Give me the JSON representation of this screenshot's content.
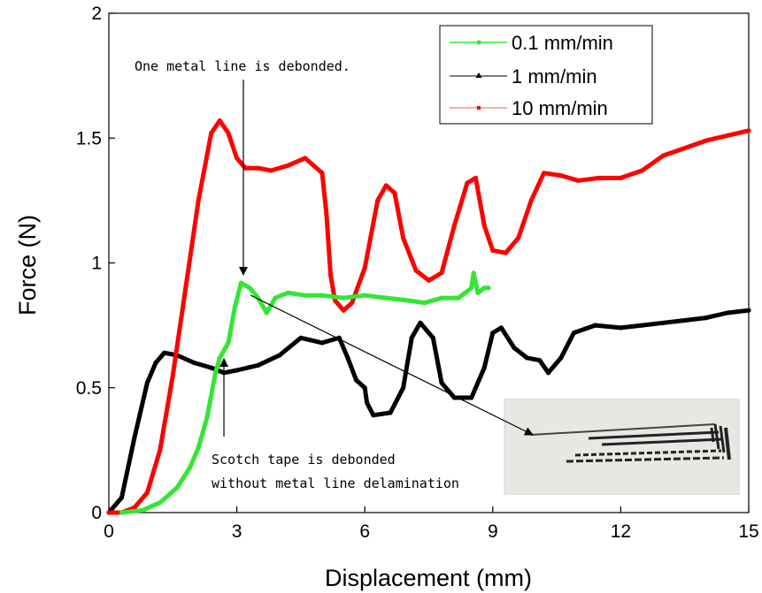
{
  "chart_data": {
    "type": "line",
    "xlabel": "Displacement (mm)",
    "ylabel": "Force (N)",
    "xlim": [
      0,
      15
    ],
    "ylim": [
      0,
      2
    ],
    "xticks": [
      "0",
      "3",
      "6",
      "9",
      "12",
      "15"
    ],
    "yticks": [
      "0",
      "0.5",
      "1",
      "1.5",
      "2"
    ],
    "legend_position": "top-right",
    "series": [
      {
        "name": "0.1 mm/min",
        "color": "#33e633",
        "marker": "circle",
        "points": [
          [
            0.3,
            0
          ],
          [
            0.8,
            0.01
          ],
          [
            1.2,
            0.04
          ],
          [
            1.6,
            0.1
          ],
          [
            1.9,
            0.18
          ],
          [
            2.1,
            0.26
          ],
          [
            2.3,
            0.38
          ],
          [
            2.5,
            0.56
          ],
          [
            2.6,
            0.62
          ],
          [
            2.8,
            0.68
          ],
          [
            2.95,
            0.82
          ],
          [
            3.1,
            0.92
          ],
          [
            3.3,
            0.9
          ],
          [
            3.5,
            0.86
          ],
          [
            3.7,
            0.8
          ],
          [
            3.9,
            0.86
          ],
          [
            4.2,
            0.88
          ],
          [
            4.6,
            0.87
          ],
          [
            5.0,
            0.87
          ],
          [
            5.5,
            0.86
          ],
          [
            6.0,
            0.87
          ],
          [
            6.5,
            0.86
          ],
          [
            7.0,
            0.85
          ],
          [
            7.4,
            0.84
          ],
          [
            7.8,
            0.86
          ],
          [
            8.2,
            0.86
          ],
          [
            8.5,
            0.9
          ],
          [
            8.55,
            0.96
          ],
          [
            8.65,
            0.88
          ],
          [
            8.8,
            0.9
          ],
          [
            8.9,
            0.9
          ]
        ]
      },
      {
        "name": "1 mm/min",
        "color": "#000000",
        "marker": "triangle",
        "points": [
          [
            0,
            0
          ],
          [
            0.3,
            0.06
          ],
          [
            0.6,
            0.3
          ],
          [
            0.9,
            0.52
          ],
          [
            1.1,
            0.6
          ],
          [
            1.3,
            0.64
          ],
          [
            1.6,
            0.63
          ],
          [
            2.0,
            0.6
          ],
          [
            2.4,
            0.58
          ],
          [
            2.7,
            0.56
          ],
          [
            3.0,
            0.57
          ],
          [
            3.5,
            0.59
          ],
          [
            4.0,
            0.63
          ],
          [
            4.5,
            0.7
          ],
          [
            5.0,
            0.68
          ],
          [
            5.4,
            0.7
          ],
          [
            5.6,
            0.62
          ],
          [
            5.8,
            0.53
          ],
          [
            6.0,
            0.5
          ],
          [
            6.05,
            0.44
          ],
          [
            6.2,
            0.39
          ],
          [
            6.6,
            0.4
          ],
          [
            6.9,
            0.5
          ],
          [
            7.1,
            0.7
          ],
          [
            7.3,
            0.76
          ],
          [
            7.6,
            0.7
          ],
          [
            7.8,
            0.52
          ],
          [
            8.1,
            0.46
          ],
          [
            8.5,
            0.46
          ],
          [
            8.8,
            0.58
          ],
          [
            9.0,
            0.72
          ],
          [
            9.2,
            0.74
          ],
          [
            9.5,
            0.66
          ],
          [
            9.8,
            0.62
          ],
          [
            10.1,
            0.61
          ],
          [
            10.3,
            0.56
          ],
          [
            10.6,
            0.62
          ],
          [
            10.9,
            0.72
          ],
          [
            11.4,
            0.75
          ],
          [
            12,
            0.74
          ],
          [
            12.5,
            0.75
          ],
          [
            13,
            0.76
          ],
          [
            13.5,
            0.77
          ],
          [
            14,
            0.78
          ],
          [
            14.5,
            0.8
          ],
          [
            15,
            0.81
          ]
        ]
      },
      {
        "name": "10 mm/min",
        "color": "#ff0000",
        "marker": "square",
        "points": [
          [
            0,
            0
          ],
          [
            0.3,
            0
          ],
          [
            0.6,
            0.02
          ],
          [
            0.9,
            0.08
          ],
          [
            1.2,
            0.25
          ],
          [
            1.5,
            0.55
          ],
          [
            1.8,
            0.9
          ],
          [
            2.1,
            1.25
          ],
          [
            2.4,
            1.52
          ],
          [
            2.6,
            1.57
          ],
          [
            2.8,
            1.52
          ],
          [
            3.0,
            1.42
          ],
          [
            3.2,
            1.38
          ],
          [
            3.5,
            1.38
          ],
          [
            3.8,
            1.37
          ],
          [
            4.2,
            1.39
          ],
          [
            4.6,
            1.42
          ],
          [
            5.0,
            1.36
          ],
          [
            5.1,
            1.2
          ],
          [
            5.2,
            0.95
          ],
          [
            5.3,
            0.85
          ],
          [
            5.5,
            0.81
          ],
          [
            5.7,
            0.84
          ],
          [
            6.0,
            0.98
          ],
          [
            6.3,
            1.25
          ],
          [
            6.5,
            1.31
          ],
          [
            6.7,
            1.28
          ],
          [
            6.9,
            1.1
          ],
          [
            7.2,
            0.97
          ],
          [
            7.5,
            0.93
          ],
          [
            7.8,
            0.96
          ],
          [
            8.1,
            1.15
          ],
          [
            8.4,
            1.32
          ],
          [
            8.6,
            1.34
          ],
          [
            8.8,
            1.15
          ],
          [
            9.0,
            1.05
          ],
          [
            9.3,
            1.04
          ],
          [
            9.6,
            1.1
          ],
          [
            9.9,
            1.25
          ],
          [
            10.2,
            1.36
          ],
          [
            10.6,
            1.35
          ],
          [
            11.0,
            1.33
          ],
          [
            11.5,
            1.34
          ],
          [
            12.0,
            1.34
          ],
          [
            12.5,
            1.37
          ],
          [
            13.0,
            1.43
          ],
          [
            13.5,
            1.46
          ],
          [
            14.0,
            1.49
          ],
          [
            14.5,
            1.51
          ],
          [
            15.0,
            1.53
          ]
        ]
      }
    ],
    "annotations": [
      {
        "text": "One metal line is debonded."
      },
      {
        "text_lines": [
          "Scotch tape is debonded",
          "without metal line delamination"
        ]
      }
    ]
  },
  "inset": {
    "name": "sample-photo"
  }
}
